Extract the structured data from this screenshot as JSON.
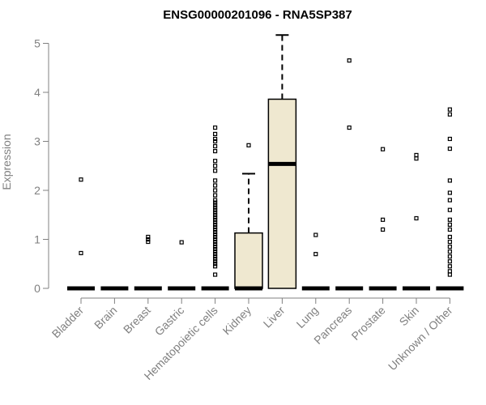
{
  "chart_data": {
    "type": "box",
    "title": "ENSG00000201096 - RNA5SP387",
    "ylabel": "Expression",
    "xlabel": "",
    "ylim": [
      0,
      5.2
    ],
    "yticks": [
      0,
      1,
      2,
      3,
      4,
      5
    ],
    "box_fill": "#efe8d0",
    "categories": [
      "Bladder",
      "Brain",
      "Breast",
      "Gastric",
      "Hematopoietic cells",
      "Kidney",
      "Liver",
      "Lung",
      "Pancreas",
      "Prostate",
      "Skin",
      "Unknown / Other"
    ],
    "boxes": [
      {
        "q1": 0,
        "median": 0,
        "q3": 0,
        "whisker_low": 0,
        "whisker_high": 0,
        "outliers": [
          0.72,
          2.22
        ]
      },
      {
        "q1": 0,
        "median": 0,
        "q3": 0,
        "whisker_low": 0,
        "whisker_high": 0,
        "outliers": []
      },
      {
        "q1": 0,
        "median": 0,
        "q3": 0,
        "whisker_low": 0,
        "whisker_high": 0,
        "outliers": [
          0.95,
          1.0,
          1.05
        ]
      },
      {
        "q1": 0,
        "median": 0,
        "q3": 0,
        "whisker_low": 0,
        "whisker_high": 0,
        "outliers": [
          0.94
        ]
      },
      {
        "q1": 0,
        "median": 0,
        "q3": 0,
        "whisker_low": 0,
        "whisker_high": 0,
        "outliers": [
          0.28,
          0.45,
          0.5,
          0.55,
          0.6,
          0.65,
          0.7,
          0.75,
          0.8,
          0.85,
          0.9,
          0.95,
          1.0,
          1.05,
          1.1,
          1.15,
          1.2,
          1.25,
          1.3,
          1.35,
          1.4,
          1.45,
          1.5,
          1.55,
          1.6,
          1.65,
          1.7,
          1.75,
          1.8,
          1.9,
          2.0,
          2.1,
          2.2,
          2.4,
          2.5,
          2.6,
          2.8,
          2.9,
          3.0,
          3.05,
          3.15,
          3.28
        ]
      },
      {
        "q1": 0,
        "median": 0,
        "q3": 1.13,
        "whisker_low": 0,
        "whisker_high": 2.34,
        "outliers": [
          2.92
        ]
      },
      {
        "q1": 0,
        "median": 2.54,
        "q3": 3.86,
        "whisker_low": 0,
        "whisker_high": 5.17,
        "outliers": []
      },
      {
        "q1": 0,
        "median": 0,
        "q3": 0,
        "whisker_low": 0,
        "whisker_high": 0,
        "outliers": [
          0.7,
          1.09
        ]
      },
      {
        "q1": 0,
        "median": 0,
        "q3": 0,
        "whisker_low": 0,
        "whisker_high": 0,
        "outliers": [
          3.28,
          4.65
        ]
      },
      {
        "q1": 0,
        "median": 0,
        "q3": 0,
        "whisker_low": 0,
        "whisker_high": 0,
        "outliers": [
          1.2,
          1.4,
          2.84
        ]
      },
      {
        "q1": 0,
        "median": 0,
        "q3": 0,
        "whisker_low": 0,
        "whisker_high": 0,
        "outliers": [
          1.43,
          2.65,
          2.72
        ]
      },
      {
        "q1": 0,
        "median": 0,
        "q3": 0,
        "whisker_low": 0,
        "whisker_high": 0,
        "outliers": [
          0.28,
          0.35,
          0.45,
          0.55,
          0.65,
          0.75,
          0.85,
          0.95,
          1.05,
          1.2,
          1.3,
          1.4,
          1.6,
          1.8,
          1.95,
          2.2,
          2.85,
          3.05,
          3.55,
          3.65
        ]
      }
    ]
  }
}
